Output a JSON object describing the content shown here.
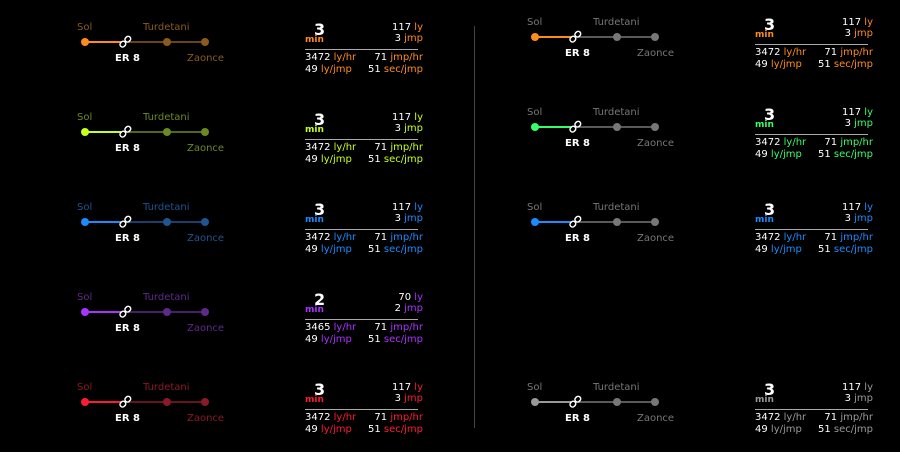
{
  "cards": [
    {
      "id": "l1",
      "accent": "#ff8c1a",
      "dim": "#8a5a1f",
      "start": "Sol",
      "end": "Turdetani",
      "bridge": "ER 8",
      "dest": "Zaonce",
      "time": "3",
      "unit": "min",
      "ly": "117",
      "ly_unit": "ly",
      "jmp": "3",
      "jmp_unit": "jmp",
      "lyhr": "3472",
      "lyhr_unit": "ly/hr",
      "jmphr": "71",
      "jmphr_unit": "jmp/hr",
      "lyjmp": "49",
      "lyjmp_unit": "ly/jmp",
      "secjmp": "51",
      "secjmp_unit": "sec/jmp"
    },
    {
      "id": "l2",
      "accent": "#c8ff1a",
      "dim": "#6b8a1f",
      "start": "Sol",
      "end": "Turdetani",
      "bridge": "ER 8",
      "dest": "Zaonce",
      "time": "3",
      "unit": "min",
      "ly": "117",
      "ly_unit": "ly",
      "jmp": "3",
      "jmp_unit": "jmp",
      "lyhr": "3472",
      "lyhr_unit": "ly/hr",
      "jmphr": "71",
      "jmphr_unit": "jmp/hr",
      "lyjmp": "49",
      "lyjmp_unit": "ly/jmp",
      "secjmp": "51",
      "secjmp_unit": "sec/jmp"
    },
    {
      "id": "l3",
      "accent": "#1a8cff",
      "dim": "#1f5590",
      "start": "Sol",
      "end": "Turdetani",
      "bridge": "ER 8",
      "dest": "Zaonce",
      "time": "3",
      "unit": "min",
      "ly": "117",
      "ly_unit": "ly",
      "jmp": "3",
      "jmp_unit": "jmp",
      "lyhr": "3472",
      "lyhr_unit": "ly/hr",
      "jmphr": "71",
      "jmphr_unit": "jmp/hr",
      "lyjmp": "49",
      "lyjmp_unit": "ly/jmp",
      "secjmp": "51",
      "secjmp_unit": "sec/jmp"
    },
    {
      "id": "l4",
      "accent": "#aa33ff",
      "dim": "#5e2a8a",
      "start": "Sol",
      "end": "Turdetani",
      "bridge": "ER 8",
      "dest": "Zaonce",
      "time": "2",
      "unit": "min",
      "ly": "70",
      "ly_unit": "ly",
      "jmp": "2",
      "jmp_unit": "jmp",
      "lyhr": "3465",
      "lyhr_unit": "ly/hr",
      "jmphr": "71",
      "jmphr_unit": "jmp/hr",
      "lyjmp": "49",
      "lyjmp_unit": "ly/jmp",
      "secjmp": "51",
      "secjmp_unit": "sec/jmp"
    },
    {
      "id": "l5",
      "accent": "#ff1a33",
      "dim": "#8a1a25",
      "start": "Sol",
      "end": "Turdetani",
      "bridge": "ER 8",
      "dest": "Zaonce",
      "time": "3",
      "unit": "min",
      "ly": "117",
      "ly_unit": "ly",
      "jmp": "3",
      "jmp_unit": "jmp",
      "lyhr": "3472",
      "lyhr_unit": "ly/hr",
      "jmphr": "71",
      "jmphr_unit": "jmp/hr",
      "lyjmp": "49",
      "lyjmp_unit": "ly/jmp",
      "secjmp": "51",
      "secjmp_unit": "sec/jmp"
    },
    {
      "id": "r1",
      "accent": "#ff8c1a",
      "dim": "#777777",
      "start": "Sol",
      "end": "Turdetani",
      "bridge": "ER 8",
      "dest": "Zaonce",
      "time": "3",
      "unit": "min",
      "ly": "117",
      "ly_unit": "ly",
      "jmp": "3",
      "jmp_unit": "jmp",
      "lyhr": "3472",
      "lyhr_unit": "ly/hr",
      "jmphr": "71",
      "jmphr_unit": "jmp/hr",
      "lyjmp": "49",
      "lyjmp_unit": "ly/jmp",
      "secjmp": "51",
      "secjmp_unit": "sec/jmp"
    },
    {
      "id": "r2",
      "accent": "#33ff66",
      "dim": "#777777",
      "start": "Sol",
      "end": "Turdetani",
      "bridge": "ER 8",
      "dest": "Zaonce",
      "time": "3",
      "unit": "min",
      "ly": "117",
      "ly_unit": "ly",
      "jmp": "3",
      "jmp_unit": "jmp",
      "lyhr": "3472",
      "lyhr_unit": "ly/hr",
      "jmphr": "71",
      "jmphr_unit": "jmp/hr",
      "lyjmp": "49",
      "lyjmp_unit": "ly/jmp",
      "secjmp": "51",
      "secjmp_unit": "sec/jmp"
    },
    {
      "id": "r3",
      "accent": "#1a8cff",
      "dim": "#777777",
      "start": "Sol",
      "end": "Turdetani",
      "bridge": "ER 8",
      "dest": "Zaonce",
      "time": "3",
      "unit": "min",
      "ly": "117",
      "ly_unit": "ly",
      "jmp": "3",
      "jmp_unit": "jmp",
      "lyhr": "3472",
      "lyhr_unit": "ly/hr",
      "jmphr": "71",
      "jmphr_unit": "jmp/hr",
      "lyjmp": "49",
      "lyjmp_unit": "ly/jmp",
      "secjmp": "51",
      "secjmp_unit": "sec/jmp"
    },
    {
      "id": "r5",
      "accent": "#999999",
      "dim": "#777777",
      "start": "Sol",
      "end": "Turdetani",
      "bridge": "ER 8",
      "dest": "Zaonce",
      "time": "3",
      "unit": "min",
      "ly": "117",
      "ly_unit": "ly",
      "jmp": "3",
      "jmp_unit": "jmp",
      "lyhr": "3472",
      "lyhr_unit": "ly/hr",
      "jmphr": "71",
      "jmphr_unit": "jmp/hr",
      "lyjmp": "49",
      "lyjmp_unit": "ly/jmp",
      "secjmp": "51",
      "secjmp_unit": "sec/jmp"
    }
  ]
}
